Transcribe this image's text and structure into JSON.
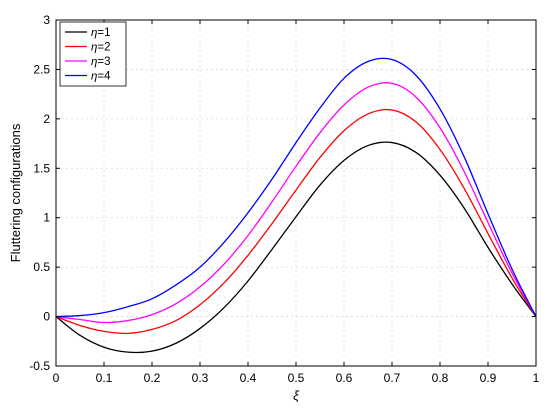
{
  "chart_data": {
    "type": "line",
    "xlabel": "ξ",
    "ylabel": "Fluttering configurations",
    "xlim": [
      0,
      1
    ],
    "ylim": [
      -0.5,
      3
    ],
    "xticks": [
      "0",
      "0.1",
      "0.2",
      "0.3",
      "0.4",
      "0.5",
      "0.6",
      "0.7",
      "0.8",
      "0.9",
      "1"
    ],
    "yticks": [
      "-0.5",
      "0",
      "0.5",
      "1",
      "1.5",
      "2",
      "2.5",
      "3"
    ],
    "grid": true,
    "legend_position": "top-left",
    "x": [
      0,
      0.05,
      0.1,
      0.15,
      0.2,
      0.25,
      0.3,
      0.35,
      0.4,
      0.45,
      0.5,
      0.55,
      0.6,
      0.65,
      0.7,
      0.75,
      0.8,
      0.85,
      0.9,
      0.95,
      1
    ],
    "series": [
      {
        "name": "η=1",
        "legend_symbol": "η",
        "legend_value": "=1",
        "color": "#000000",
        "values": [
          0,
          -0.19,
          -0.31,
          -0.36,
          -0.35,
          -0.27,
          -0.12,
          0.09,
          0.36,
          0.68,
          1.01,
          1.33,
          1.58,
          1.73,
          1.76,
          1.66,
          1.43,
          1.1,
          0.7,
          0.33,
          0
        ]
      },
      {
        "name": "η=2",
        "legend_symbol": "η",
        "legend_value": "=2",
        "color": "#ff0000",
        "values": [
          0,
          -0.09,
          -0.15,
          -0.17,
          -0.13,
          -0.04,
          0.12,
          0.34,
          0.62,
          0.94,
          1.28,
          1.61,
          1.88,
          2.05,
          2.09,
          1.97,
          1.69,
          1.3,
          0.84,
          0.39,
          0
        ]
      },
      {
        "name": "η=3",
        "legend_symbol": "η",
        "legend_value": "=3",
        "color": "#ff00ff",
        "values": [
          0,
          -0.03,
          -0.06,
          -0.04,
          0.02,
          0.13,
          0.3,
          0.53,
          0.82,
          1.16,
          1.52,
          1.86,
          2.14,
          2.32,
          2.36,
          2.22,
          1.91,
          1.47,
          0.95,
          0.44,
          0
        ]
      },
      {
        "name": "η=4",
        "legend_symbol": "η",
        "legend_value": "=4",
        "color": "#0000ff",
        "values": [
          0,
          0.01,
          0.04,
          0.1,
          0.18,
          0.32,
          0.5,
          0.75,
          1.05,
          1.39,
          1.76,
          2.11,
          2.41,
          2.58,
          2.6,
          2.44,
          2.1,
          1.62,
          1.04,
          0.48,
          0
        ]
      }
    ]
  }
}
